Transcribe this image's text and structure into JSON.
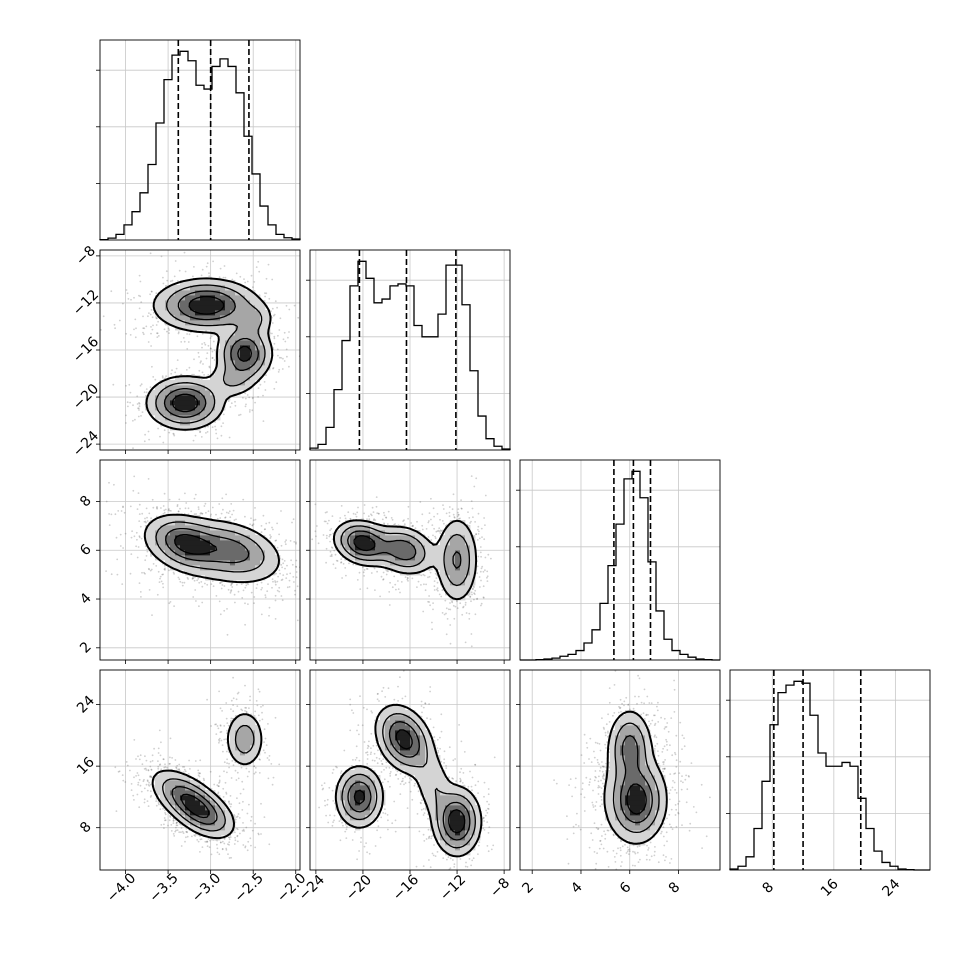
{
  "chart_data": {
    "type": "corner",
    "title": "",
    "colors": {
      "line": "#000000",
      "grid": "#c8c8c8",
      "scatter": "#555555",
      "frame": "#000000"
    },
    "grid": true,
    "parameters": [
      {
        "index": 0,
        "range": [
          -4.3,
          -1.95
        ],
        "quantiles": [
          -3.38,
          -3.0,
          -2.55
        ],
        "ticks": [
          -4.0,
          -3.5,
          -3.0,
          -2.5,
          -2.0
        ],
        "tick_labels": [
          "−4.0",
          "−3.5",
          "−3.0",
          "−2.5",
          "−2.0"
        ]
      },
      {
        "index": 1,
        "range": [
          -24.5,
          -7.5
        ],
        "quantiles": [
          -20.3,
          -16.3,
          -12.1
        ],
        "ticks": [
          -24,
          -20,
          -16,
          -12,
          -8
        ],
        "tick_labels": [
          "−24",
          "−20",
          "−16",
          "−12",
          "−8"
        ]
      },
      {
        "index": 2,
        "range": [
          1.5,
          9.7
        ],
        "quantiles": [
          5.35,
          6.15,
          6.85
        ],
        "ticks": [
          2,
          4,
          6,
          8
        ],
        "tick_labels": [
          "2",
          "4",
          "6",
          "8"
        ]
      },
      {
        "index": 3,
        "range": [
          2.5,
          28.5
        ],
        "quantiles": [
          8.2,
          12.0,
          19.5
        ],
        "ticks": [
          8,
          16,
          24
        ],
        "tick_labels": [
          "8",
          "16",
          "24"
        ]
      }
    ],
    "histograms": [
      {
        "param": 0,
        "bin_edges_range": [
          -4.3,
          -1.95
        ],
        "counts": [
          0.002,
          0.01,
          0.03,
          0.08,
          0.15,
          0.25,
          0.4,
          0.62,
          0.85,
          0.98,
          1.0,
          0.95,
          0.82,
          0.8,
          0.92,
          0.96,
          0.92,
          0.78,
          0.55,
          0.35,
          0.18,
          0.08,
          0.03,
          0.012,
          0.005
        ]
      },
      {
        "param": 1,
        "bin_edges_range": [
          -24.5,
          -7.5
        ],
        "counts": [
          0.01,
          0.03,
          0.12,
          0.32,
          0.58,
          0.87,
          1.0,
          0.91,
          0.78,
          0.8,
          0.87,
          0.88,
          0.87,
          0.66,
          0.6,
          0.6,
          0.72,
          0.98,
          0.98,
          0.77,
          0.42,
          0.18,
          0.06,
          0.02,
          0.005
        ]
      },
      {
        "param": 2,
        "bin_edges_range": [
          1.5,
          9.7
        ],
        "counts": [
          0.0,
          0.0,
          0.002,
          0.005,
          0.01,
          0.02,
          0.03,
          0.05,
          0.09,
          0.16,
          0.3,
          0.5,
          0.72,
          0.96,
          1.0,
          0.86,
          0.52,
          0.26,
          0.11,
          0.05,
          0.03,
          0.015,
          0.005,
          0.002,
          0.0
        ]
      },
      {
        "param": 3,
        "bin_edges_range": [
          2.5,
          28.5
        ],
        "counts": [
          0.005,
          0.02,
          0.07,
          0.22,
          0.47,
          0.77,
          0.94,
          0.98,
          1.0,
          0.99,
          0.82,
          0.62,
          0.55,
          0.55,
          0.57,
          0.55,
          0.38,
          0.22,
          0.1,
          0.04,
          0.02,
          0.005,
          0.002,
          0.0,
          0.0
        ]
      }
    ],
    "pairs": [
      {
        "x": 0,
        "y": 1,
        "modes": [
          {
            "mx": -3.05,
            "my": -12.2,
            "sx": 0.3,
            "sy": 1.1,
            "rho": 0.0,
            "w": 1.0
          },
          {
            "mx": -2.6,
            "my": -16.3,
            "sx": 0.16,
            "sy": 1.2,
            "rho": 0.0,
            "w": 0.9
          },
          {
            "mx": -3.3,
            "my": -20.5,
            "sx": 0.22,
            "sy": 1.1,
            "rho": 0.0,
            "w": 1.0
          },
          {
            "mx": -2.75,
            "my": -18.6,
            "sx": 0.15,
            "sy": 0.8,
            "rho": 0.0,
            "w": 0.28
          },
          {
            "mx": -2.48,
            "my": -13.4,
            "sx": 0.12,
            "sy": 0.8,
            "rho": 0.0,
            "w": 0.28
          }
        ]
      },
      {
        "x": 0,
        "y": 2,
        "modes": [
          {
            "mx": -3.3,
            "my": 6.3,
            "sx": 0.22,
            "sy": 0.55,
            "rho": -0.3,
            "w": 1.0
          },
          {
            "mx": -2.75,
            "my": 6.0,
            "sx": 0.28,
            "sy": 0.6,
            "rho": -0.3,
            "w": 0.75
          },
          {
            "mx": -3.0,
            "my": 5.8,
            "sx": 0.5,
            "sy": 0.9,
            "rho": -0.4,
            "w": 0.18
          }
        ]
      },
      {
        "x": 1,
        "y": 2,
        "modes": [
          {
            "mx": -20.0,
            "my": 6.3,
            "sx": 1.2,
            "sy": 0.45,
            "rho": -0.2,
            "w": 1.0
          },
          {
            "mx": -16.5,
            "my": 6.0,
            "sx": 1.3,
            "sy": 0.5,
            "rho": -0.2,
            "w": 0.75
          },
          {
            "mx": -12.0,
            "my": 5.6,
            "sx": 0.9,
            "sy": 0.9,
            "rho": 0.0,
            "w": 0.6
          }
        ]
      },
      {
        "x": 0,
        "y": 3,
        "modes": [
          {
            "mx": -3.25,
            "my": 11.5,
            "sx": 0.22,
            "sy": 2.0,
            "rho": -0.6,
            "w": 1.0
          },
          {
            "mx": -3.05,
            "my": 9.5,
            "sx": 0.18,
            "sy": 1.6,
            "rho": -0.4,
            "w": 0.45
          },
          {
            "mx": -2.6,
            "my": 19.5,
            "sx": 0.12,
            "sy": 2.0,
            "rho": 0.0,
            "w": 0.55
          }
        ]
      },
      {
        "x": 1,
        "y": 3,
        "modes": [
          {
            "mx": -20.3,
            "my": 12.0,
            "sx": 1.0,
            "sy": 2.0,
            "rho": 0.0,
            "w": 0.8
          },
          {
            "mx": -16.5,
            "my": 19.5,
            "sx": 1.2,
            "sy": 2.2,
            "rho": -0.3,
            "w": 0.85
          },
          {
            "mx": -12.0,
            "my": 8.8,
            "sx": 1.0,
            "sy": 2.2,
            "rho": 0.0,
            "w": 0.9
          },
          {
            "mx": -14.0,
            "my": 13.5,
            "sx": 0.9,
            "sy": 2.5,
            "rho": -0.3,
            "w": 0.25
          }
        ]
      },
      {
        "x": 2,
        "y": 3,
        "modes": [
          {
            "mx": 6.3,
            "my": 11.5,
            "sx": 0.55,
            "sy": 2.5,
            "rho": 0.0,
            "w": 1.0
          },
          {
            "mx": 6.0,
            "my": 18.5,
            "sx": 0.45,
            "sy": 2.5,
            "rho": 0.0,
            "w": 0.75
          },
          {
            "mx": 6.1,
            "my": 12.0,
            "sx": 0.9,
            "sy": 4.0,
            "rho": 0.0,
            "w": 0.2
          }
        ]
      }
    ]
  }
}
